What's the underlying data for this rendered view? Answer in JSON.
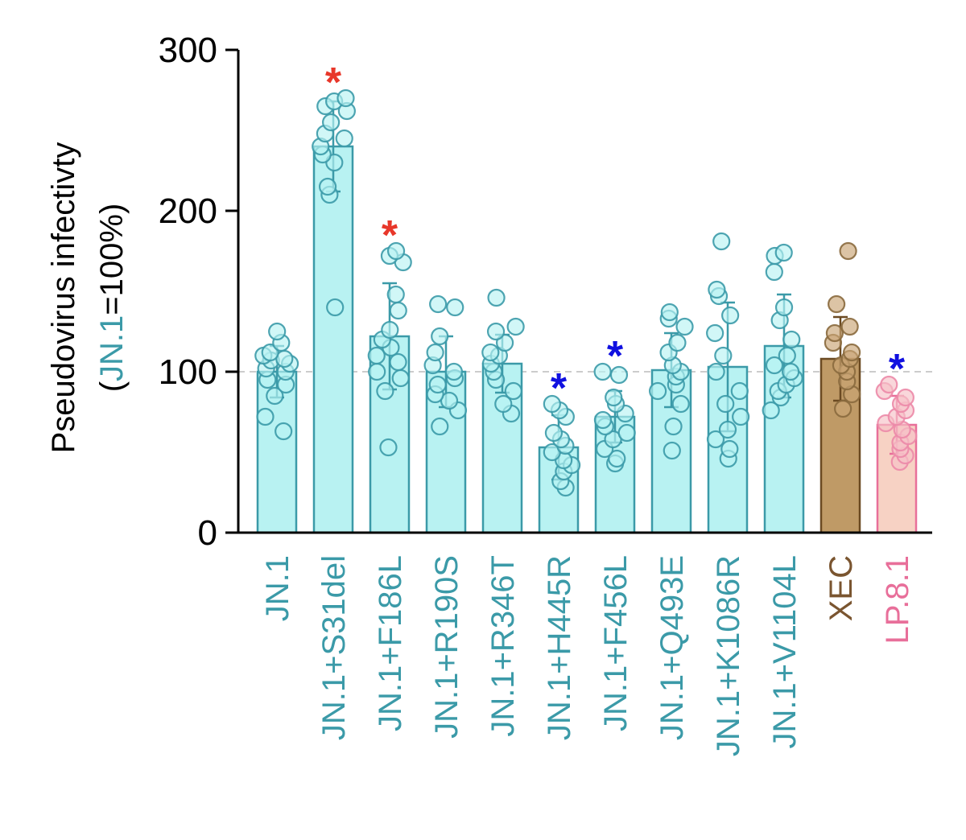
{
  "chart_data": {
    "type": "bar",
    "title": "",
    "xlabel": "",
    "ylabel": "Pseudovirus infectivty",
    "ylabel_sub": {
      "open": "(",
      "highlight": "JN.1",
      "rest": "=100%)"
    },
    "ylim": [
      0,
      300
    ],
    "yticks": [
      "0",
      "100",
      "200",
      "300"
    ],
    "reference_line": 100,
    "categories": [
      "JN.1",
      "JN.1+S31del",
      "JN.1+F186L",
      "JN.1+R190S",
      "JN.1+R346T",
      "JN.1+H445R",
      "JN.1+F456L",
      "JN.1+Q493E",
      "JN.1+K1086R",
      "JN.1+V1104L",
      "XEC",
      "LP.8.1"
    ],
    "values": [
      100,
      240,
      122,
      100,
      105,
      53,
      72,
      101,
      103,
      116,
      108,
      67
    ],
    "errors": [
      16,
      28,
      33,
      22,
      18,
      20,
      16,
      23,
      40,
      32,
      26,
      18
    ],
    "significance": [
      "",
      "*",
      "*",
      "",
      "",
      "*",
      "*",
      "",
      "",
      "",
      "",
      "*"
    ],
    "points": [
      [
        63,
        72,
        85,
        92,
        95,
        100,
        102,
        105,
        107,
        108,
        110,
        112,
        118,
        125
      ],
      [
        140,
        210,
        215,
        230,
        235,
        240,
        245,
        248,
        255,
        262,
        265,
        268,
        270
      ],
      [
        53,
        88,
        96,
        100,
        106,
        110,
        115,
        120,
        126,
        138,
        148,
        168,
        172,
        175
      ],
      [
        66,
        76,
        82,
        86,
        92,
        96,
        100,
        104,
        112,
        122,
        140,
        142
      ],
      [
        74,
        80,
        88,
        95,
        100,
        105,
        110,
        112,
        118,
        125,
        128,
        146
      ],
      [
        28,
        32,
        38,
        42,
        45,
        50,
        54,
        58,
        62,
        72,
        76,
        80
      ],
      [
        43,
        46,
        52,
        58,
        62,
        66,
        70,
        74,
        80,
        84,
        98,
        100
      ],
      [
        51,
        66,
        80,
        88,
        92,
        97,
        100,
        104,
        112,
        118,
        128,
        133,
        137
      ],
      [
        46,
        52,
        58,
        64,
        72,
        80,
        88,
        100,
        110,
        124,
        135,
        147,
        151,
        181
      ],
      [
        76,
        84,
        88,
        92,
        96,
        100,
        104,
        110,
        120,
        132,
        140,
        162,
        172,
        174
      ],
      [
        77,
        86,
        94,
        100,
        104,
        108,
        112,
        118,
        124,
        128,
        142,
        175
      ],
      [
        44,
        48,
        52,
        56,
        60,
        64,
        68,
        72,
        76,
        80,
        84,
        88,
        92
      ]
    ],
    "colors": {
      "axis": "#000000",
      "reference": "#bbbbbb",
      "sig_up": "#e8372a",
      "sig_down": "#1010e0",
      "styles": [
        {
          "fill": "#b8f2f2",
          "stroke": "#3b9aa8",
          "label": "#3b9aa8"
        },
        {
          "fill": "#b8f2f2",
          "stroke": "#3b9aa8",
          "label": "#3b9aa8"
        },
        {
          "fill": "#b8f2f2",
          "stroke": "#3b9aa8",
          "label": "#3b9aa8"
        },
        {
          "fill": "#b8f2f2",
          "stroke": "#3b9aa8",
          "label": "#3b9aa8"
        },
        {
          "fill": "#b8f2f2",
          "stroke": "#3b9aa8",
          "label": "#3b9aa8"
        },
        {
          "fill": "#b8f2f2",
          "stroke": "#3b9aa8",
          "label": "#3b9aa8"
        },
        {
          "fill": "#b8f2f2",
          "stroke": "#3b9aa8",
          "label": "#3b9aa8"
        },
        {
          "fill": "#b8f2f2",
          "stroke": "#3b9aa8",
          "label": "#3b9aa8"
        },
        {
          "fill": "#b8f2f2",
          "stroke": "#3b9aa8",
          "label": "#3b9aa8"
        },
        {
          "fill": "#b8f2f2",
          "stroke": "#3b9aa8",
          "label": "#3b9aa8"
        },
        {
          "fill": "#bf9a66",
          "stroke": "#6b4a22",
          "label": "#7a5530",
          "pointFill": "#c9a475",
          "pointStroke": "#8a6a3e"
        },
        {
          "fill": "#f7d2c4",
          "stroke": "#e86f9a",
          "label": "#e86f9a",
          "pointFill": "#f6c2c8",
          "pointStroke": "#ec8aa8"
        }
      ]
    }
  }
}
